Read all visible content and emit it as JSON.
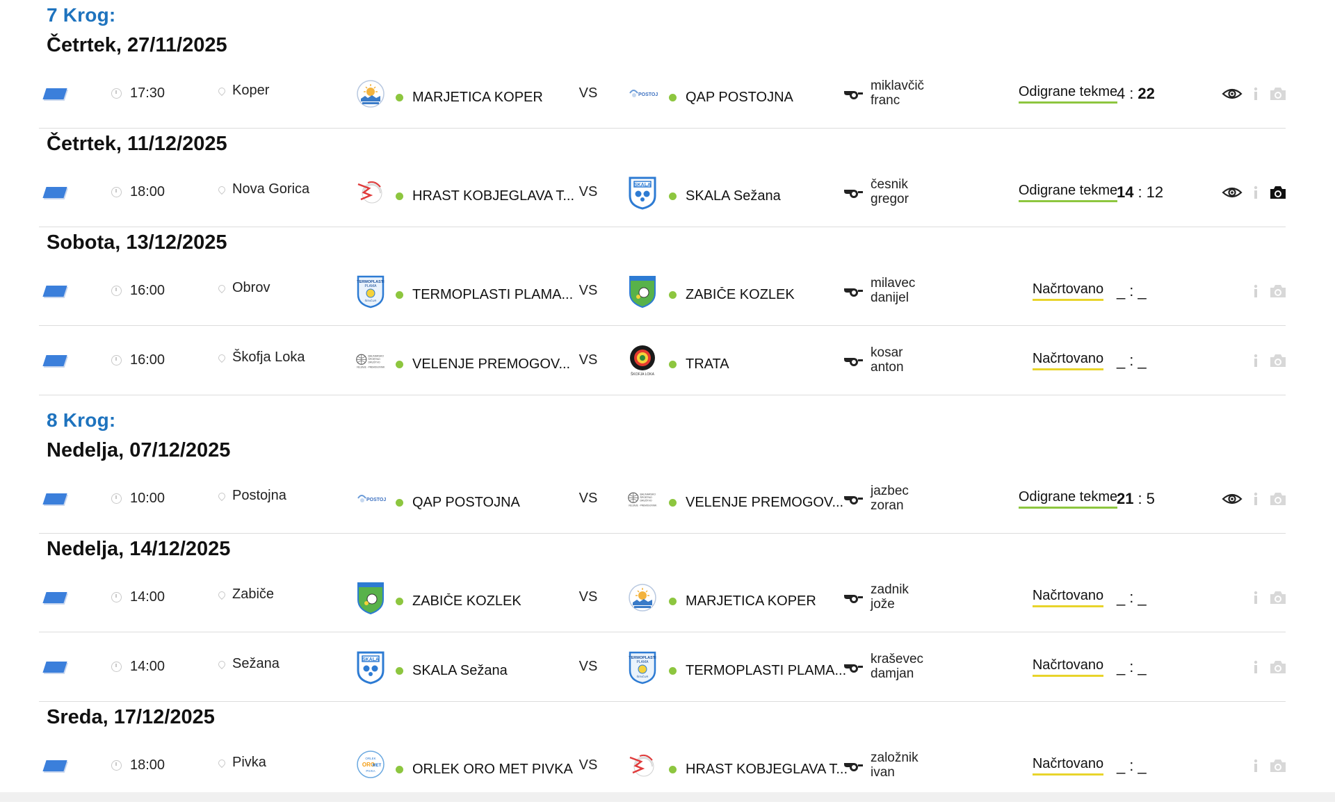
{
  "colors": {
    "accent": "#1e73be",
    "dot": "#8dc63f",
    "played_underline": "#8dc63f",
    "planned_underline": "#e8d42a"
  },
  "vs_label": "VS",
  "rounds": [
    {
      "title": "7 Krog:",
      "days": [
        {
          "date": "Četrtek, 27/11/2025",
          "matches": [
            {
              "time": "17:30",
              "venue": "Koper",
              "home": "MARJETICA KOPER",
              "home_logo": "marjetica-logo",
              "away": "QAP POSTOJNA",
              "away_logo": "postojna-logo",
              "ref1": "miklavčič",
              "ref2": "franc",
              "status": "Odigrane tekme",
              "score_home": "4",
              "score_away": "22",
              "winner": "away",
              "view": true,
              "photo": false
            }
          ]
        },
        {
          "date": "Četrtek, 11/12/2025",
          "matches": [
            {
              "time": "18:00",
              "venue": "Nova Gorica",
              "home": "HRAST KOBJEGLAVA T...",
              "home_logo": "hrast-logo",
              "away": "SKALA Sežana",
              "away_logo": "skala-logo",
              "ref1": "česnik",
              "ref2": "gregor",
              "status": "Odigrane tekme",
              "score_home": "14",
              "score_away": "12",
              "winner": "home",
              "view": true,
              "photo": true
            }
          ]
        },
        {
          "date": "Sobota, 13/12/2025",
          "matches": [
            {
              "time": "16:00",
              "venue": "Obrov",
              "home": "TERMOPLASTI PLAMA...",
              "home_logo": "termoplasti-logo",
              "away": "ZABIČE KOZLEK",
              "away_logo": "zabice-logo",
              "ref1": "milavec",
              "ref2": "danijel",
              "status": "Načrtovano",
              "score_home": "_",
              "score_away": "_",
              "winner": "",
              "view": false,
              "photo": false
            },
            {
              "time": "16:00",
              "venue": "Škofja Loka",
              "home": "VELENJE PREMOGOV...",
              "home_logo": "velenje-logo",
              "away": "TRATA",
              "away_logo": "trata-logo",
              "ref1": "kosar",
              "ref2": "anton",
              "status": "Načrtovano",
              "score_home": "_",
              "score_away": "_",
              "winner": "",
              "view": false,
              "photo": false
            }
          ]
        }
      ]
    },
    {
      "title": "8 Krog:",
      "days": [
        {
          "date": "Nedelja, 07/12/2025",
          "matches": [
            {
              "time": "10:00",
              "venue": "Postojna",
              "home": "QAP POSTOJNA",
              "home_logo": "postojna-logo",
              "away": "VELENJE PREMOGOV...",
              "away_logo": "velenje-logo",
              "ref1": "jazbec",
              "ref2": "zoran",
              "status": "Odigrane tekme",
              "score_home": "21",
              "score_away": "5",
              "winner": "home",
              "view": true,
              "photo": false
            }
          ]
        },
        {
          "date": "Nedelja, 14/12/2025",
          "matches": [
            {
              "time": "14:00",
              "venue": "Zabiče",
              "home": "ZABIČE KOZLEK",
              "home_logo": "zabice-logo",
              "away": "MARJETICA KOPER",
              "away_logo": "marjetica-logo",
              "ref1": "zadnik",
              "ref2": "jože",
              "status": "Načrtovano",
              "score_home": "_",
              "score_away": "_",
              "winner": "",
              "view": false,
              "photo": false
            },
            {
              "time": "14:00",
              "venue": "Sežana",
              "home": "SKALA Sežana",
              "home_logo": "skala-logo",
              "away": "TERMOPLASTI PLAMA...",
              "away_logo": "termoplasti-logo",
              "ref1": "kraševec",
              "ref2": "damjan",
              "status": "Načrtovano",
              "score_home": "_",
              "score_away": "_",
              "winner": "",
              "view": false,
              "photo": false
            }
          ]
        },
        {
          "date": "Sreda, 17/12/2025",
          "matches": [
            {
              "time": "18:00",
              "venue": "Pivka",
              "home": "ORLEK ORO MET PIVKA",
              "home_logo": "orlek-logo",
              "away": "HRAST KOBJEGLAVA T...",
              "away_logo": "hrast-logo",
              "ref1": "založnik",
              "ref2": "ivan",
              "status": "Načrtovano",
              "score_home": "_",
              "score_away": "_",
              "winner": "",
              "view": false,
              "photo": false
            }
          ]
        }
      ]
    }
  ]
}
